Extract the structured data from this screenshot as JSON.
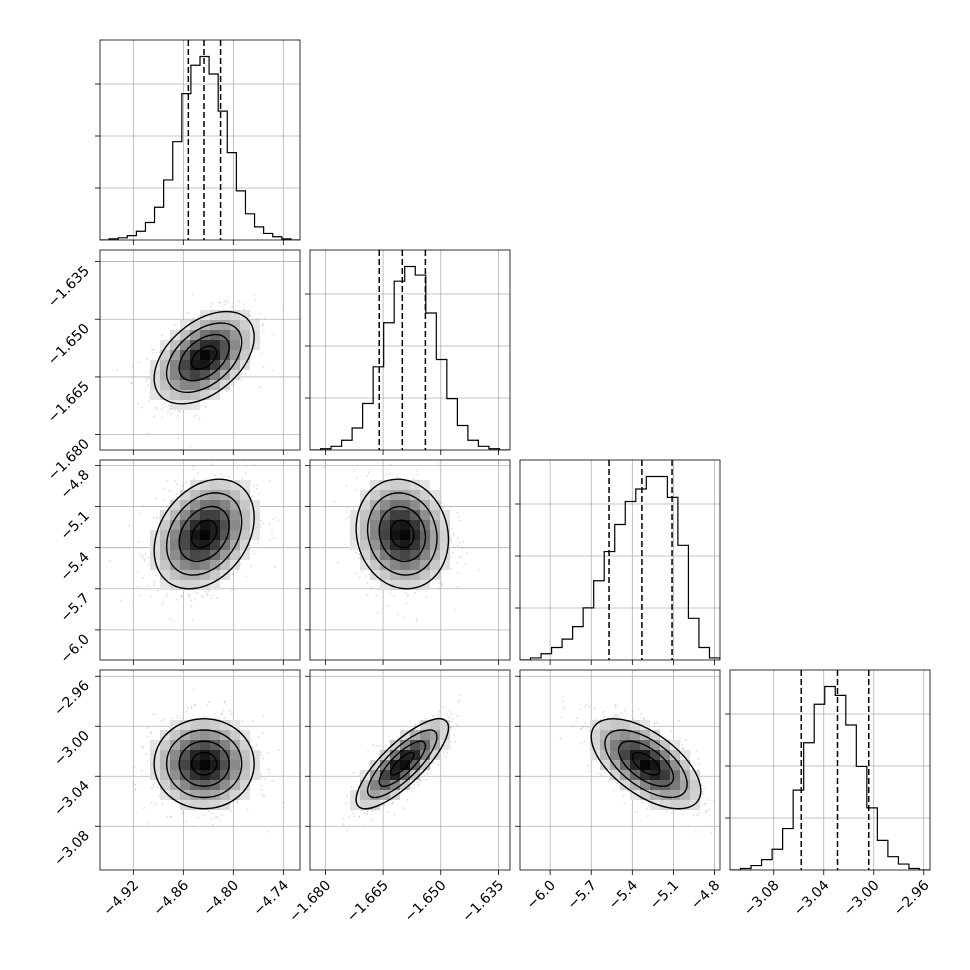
{
  "chart_data": {
    "type": "corner",
    "title": "",
    "n_params": 4,
    "param_labels": [
      "",
      "",
      "",
      ""
    ],
    "axes": [
      {
        "lim": [
          -4.96,
          -4.72
        ],
        "ticks": [
          -4.92,
          -4.86,
          -4.8,
          -4.74
        ],
        "tick_labels": [
          "−4.92",
          "−4.86",
          "−4.80",
          "−4.74"
        ]
      },
      {
        "lim": [
          -1.684,
          -1.632
        ],
        "ticks": [
          -1.68,
          -1.665,
          -1.65,
          -1.635
        ],
        "tick_labels": [
          "−1.680",
          "−1.665",
          "−1.650",
          "−1.635"
        ]
      },
      {
        "lim": [
          -6.22,
          -4.76
        ],
        "ticks": [
          -6.0,
          -5.7,
          -5.4,
          -5.1,
          -4.8
        ],
        "tick_labels": [
          "−6.0",
          "−5.7",
          "−5.4",
          "−5.1",
          "−4.8"
        ]
      },
      {
        "lim": [
          -3.115,
          -2.955
        ],
        "ticks": [
          -3.08,
          -3.04,
          -3.0,
          -2.96
        ],
        "tick_labels": [
          "−3.08",
          "−3.04",
          "−3.00",
          "−2.96"
        ]
      }
    ],
    "histograms": [
      {
        "param": 0,
        "bin_range": [
          -4.96,
          -4.72
        ],
        "quantiles": [
          -4.854,
          -4.8352,
          -4.8153
        ],
        "counts": [
          0,
          1,
          2,
          4,
          8,
          16,
          30,
          55,
          90,
          134,
          160,
          168,
          152,
          118,
          80,
          45,
          24,
          12,
          6,
          3,
          1,
          0
        ]
      },
      {
        "param": 1,
        "bin_range": [
          -1.684,
          -1.632
        ],
        "quantiles": [
          -1.666,
          -1.66,
          -1.654
        ],
        "counts": [
          0,
          1,
          3,
          8,
          18,
          38,
          68,
          104,
          138,
          150,
          143,
          112,
          74,
          42,
          20,
          8,
          3,
          1,
          0
        ]
      },
      {
        "param": 2,
        "bin_range": [
          -6.22,
          -4.76
        ],
        "quantiles": [
          -5.57,
          -5.33,
          -5.11
        ],
        "counts": [
          0,
          1,
          3,
          6,
          10,
          16,
          25,
          38,
          52,
          65,
          76,
          82,
          88,
          88,
          78,
          55,
          20,
          6,
          1
        ]
      },
      {
        "param": 3,
        "bin_range": [
          -3.115,
          -2.955
        ],
        "quantiles": [
          -3.058,
          -3.029,
          -3.004
        ],
        "counts": [
          0,
          1,
          3,
          7,
          14,
          28,
          54,
          86,
          112,
          124,
          118,
          98,
          70,
          42,
          20,
          9,
          4,
          1,
          0
        ]
      }
    ],
    "pairs": [
      {
        "x_param": 0,
        "y_param": 1,
        "mean": [
          -4.835,
          -1.66
        ],
        "sd": [
          0.03,
          0.006
        ],
        "corr": 0.45
      },
      {
        "x_param": 0,
        "y_param": 2,
        "mean": [
          -4.835,
          -5.3
        ],
        "sd": [
          0.03,
          0.2
        ],
        "corr": 0.3
      },
      {
        "x_param": 1,
        "y_param": 2,
        "mean": [
          -1.66,
          -5.3
        ],
        "sd": [
          0.006,
          0.2
        ],
        "corr": -0.1
      },
      {
        "x_param": 0,
        "y_param": 3,
        "mean": [
          -4.835,
          -3.03
        ],
        "sd": [
          0.03,
          0.018
        ],
        "corr": 0.0
      },
      {
        "x_param": 1,
        "y_param": 3,
        "mean": [
          -1.66,
          -3.03
        ],
        "sd": [
          0.006,
          0.018
        ],
        "corr": 0.8
      },
      {
        "x_param": 2,
        "y_param": 3,
        "mean": [
          -5.3,
          -3.03
        ],
        "sd": [
          0.2,
          0.018
        ],
        "corr": -0.6
      }
    ],
    "contour_levels_sigma": [
      0.5,
      1.0,
      1.5,
      2.0
    ],
    "grid": true,
    "line_color": "#000000",
    "density_color": "#000000",
    "scatter_color": "#9a9a9a",
    "grid_color": "#b0b0b0"
  }
}
